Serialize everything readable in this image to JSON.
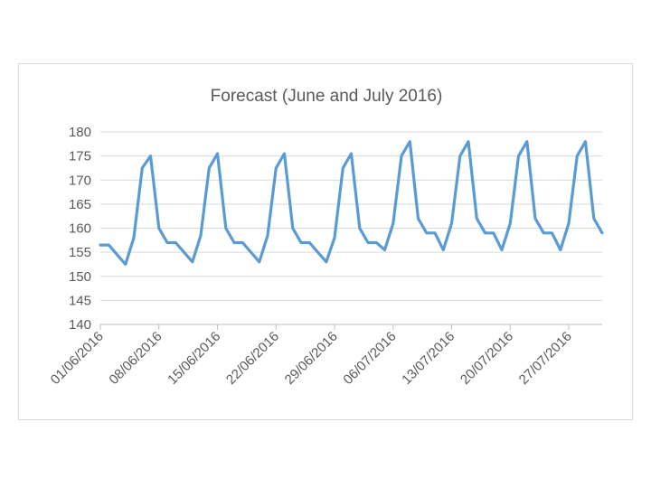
{
  "chart_data": {
    "type": "line",
    "title": "Forecast (June and July 2016)",
    "xlabel": "",
    "ylabel": "",
    "ylim": [
      140,
      180
    ],
    "yticks": [
      140,
      145,
      150,
      155,
      160,
      165,
      170,
      175,
      180
    ],
    "grid": true,
    "legend": "none",
    "x_start": "01/06/2016",
    "x_end": "31/07/2016",
    "xtick_labels": [
      "01/06/2016",
      "08/06/2016",
      "15/06/2016",
      "22/06/2016",
      "29/06/2016",
      "06/07/2016",
      "13/07/2016",
      "20/07/2016",
      "27/07/2016"
    ],
    "colors": {
      "series": "#5b9bd5"
    },
    "series": [
      {
        "x": [
          "01/06/2016",
          "02/06/2016",
          "03/06/2016",
          "04/06/2016",
          "05/06/2016",
          "06/06/2016",
          "07/06/2016",
          "08/06/2016",
          "09/06/2016",
          "10/06/2016",
          "11/06/2016",
          "12/06/2016",
          "13/06/2016",
          "14/06/2016",
          "15/06/2016",
          "16/06/2016",
          "17/06/2016",
          "18/06/2016",
          "19/06/2016",
          "20/06/2016",
          "21/06/2016",
          "22/06/2016",
          "23/06/2016",
          "24/06/2016",
          "25/06/2016",
          "26/06/2016",
          "27/06/2016",
          "28/06/2016",
          "29/06/2016",
          "30/06/2016",
          "01/07/2016",
          "02/07/2016",
          "03/07/2016",
          "04/07/2016",
          "05/07/2016",
          "06/07/2016",
          "07/07/2016",
          "08/07/2016",
          "09/07/2016",
          "10/07/2016",
          "11/07/2016",
          "12/07/2016",
          "13/07/2016",
          "14/07/2016",
          "15/07/2016",
          "16/07/2016",
          "17/07/2016",
          "18/07/2016",
          "19/07/2016",
          "20/07/2016",
          "21/07/2016",
          "22/07/2016",
          "23/07/2016",
          "24/07/2016",
          "25/07/2016",
          "26/07/2016",
          "27/07/2016",
          "28/07/2016",
          "29/07/2016",
          "30/07/2016",
          "31/07/2016"
        ],
        "values": [
          156.5,
          156.5,
          154.5,
          152.5,
          158,
          172.5,
          175,
          160,
          157,
          157,
          155,
          153,
          158.5,
          172.5,
          175.5,
          160,
          157,
          157,
          155,
          153,
          158.5,
          172.5,
          175.5,
          160,
          157,
          157,
          155,
          153,
          158,
          172.5,
          175.5,
          160,
          157,
          157,
          155.5,
          161,
          175,
          178,
          162,
          159,
          159,
          155.5,
          161,
          175,
          178,
          162,
          159,
          159,
          155.5,
          161,
          175,
          178,
          162,
          159,
          159,
          155.5,
          161,
          175,
          178,
          162,
          159
        ]
      }
    ]
  }
}
